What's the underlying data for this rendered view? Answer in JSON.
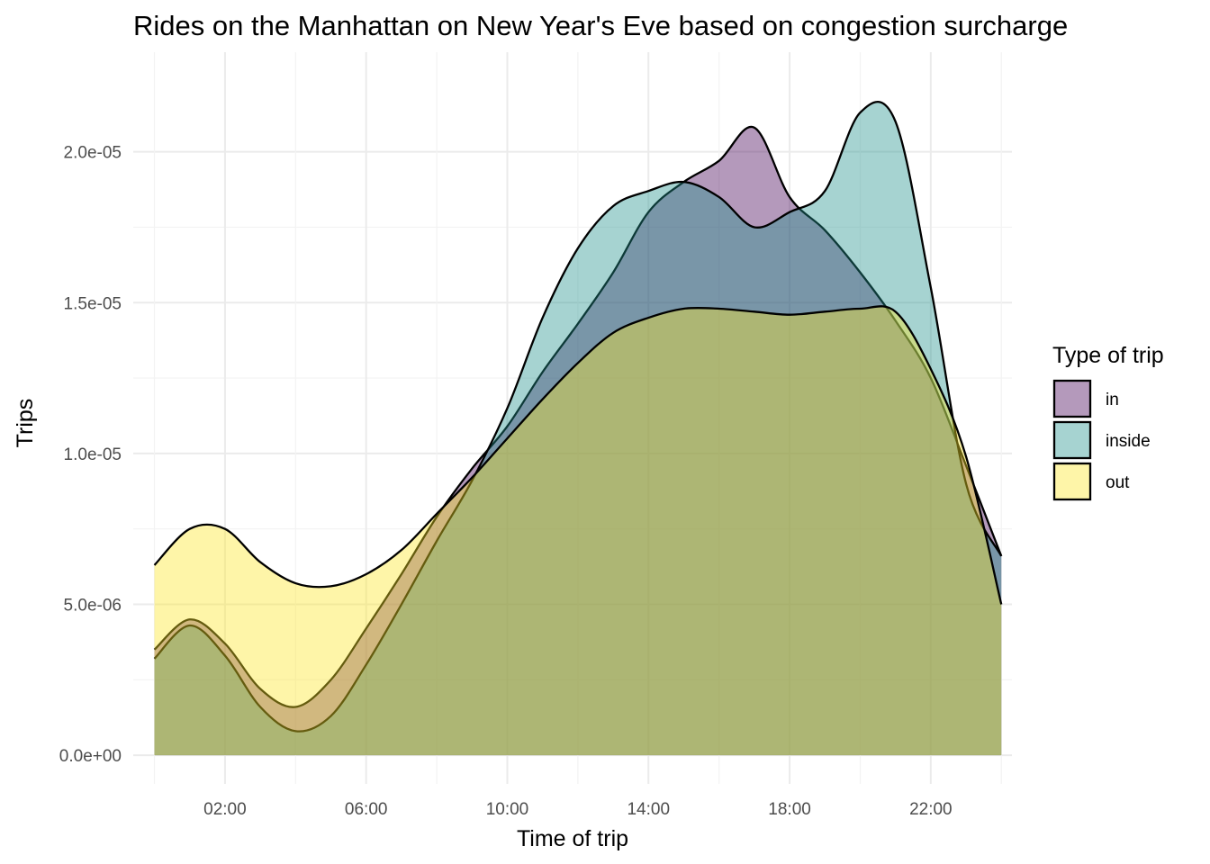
{
  "chart_data": {
    "type": "area",
    "title": "Rides on the Manhattan on New Year's Eve based on congestion surcharge",
    "xlabel": "Time of trip",
    "ylabel": "Trips",
    "xlim": [
      -0.6,
      24.3
    ],
    "ylim": [
      -9.5e-07,
      2.33e-05
    ],
    "x_ticks": [
      2,
      6,
      10,
      14,
      18,
      22
    ],
    "x_tick_labels": [
      "02:00",
      "06:00",
      "10:00",
      "14:00",
      "18:00",
      "22:00"
    ],
    "y_ticks": [
      0,
      5e-06,
      1e-05,
      1.5e-05,
      2e-05
    ],
    "y_tick_labels": [
      "0.0e+00",
      "5.0e-06",
      "1.0e-05",
      "1.5e-05",
      "2.0e-05"
    ],
    "grid": true,
    "legend": {
      "title": "Type of trip",
      "position": "right"
    },
    "x": [
      0,
      1,
      2,
      3,
      4,
      5,
      6,
      7,
      8,
      9,
      10,
      11,
      12,
      13,
      14,
      15,
      16,
      17,
      18,
      19,
      20,
      21,
      22,
      23,
      24
    ],
    "series": [
      {
        "name": "in",
        "color": "#440154",
        "values": [
          3.5e-06,
          4.5e-06,
          3.7e-06,
          2.2e-06,
          1.6e-06,
          2.5e-06,
          4.2e-06,
          6e-06,
          7.9e-06,
          9.5e-06,
          1.09e-05,
          1.27e-05,
          1.43e-05,
          1.6e-05,
          1.8e-05,
          1.9e-05,
          1.97e-05,
          2.08e-05,
          1.85e-05,
          1.74e-05,
          1.6e-05,
          1.44e-05,
          1.25e-05,
          9.6e-06,
          6.6e-06
        ]
      },
      {
        "name": "inside",
        "color": "#21908C",
        "values": [
          3.2e-06,
          4.3e-06,
          3.3e-06,
          1.6e-06,
          8e-07,
          1.3e-06,
          3e-06,
          5e-06,
          7.1e-06,
          9.1e-06,
          1.15e-05,
          1.45e-05,
          1.68e-05,
          1.82e-05,
          1.87e-05,
          1.9e-05,
          1.85e-05,
          1.75e-05,
          1.8e-05,
          1.87e-05,
          2.13e-05,
          2.1e-05,
          1.55e-05,
          9e-06,
          6.6e-06
        ]
      },
      {
        "name": "out",
        "color": "#FDE725",
        "values": [
          6.3e-06,
          7.5e-06,
          7.5e-06,
          6.4e-06,
          5.7e-06,
          5.6e-06,
          6e-06,
          6.8e-06,
          8e-06,
          9.2e-06,
          1.05e-05,
          1.18e-05,
          1.3e-05,
          1.4e-05,
          1.45e-05,
          1.48e-05,
          1.48e-05,
          1.47e-05,
          1.46e-05,
          1.47e-05,
          1.48e-05,
          1.47e-05,
          1.28e-05,
          9.9e-06,
          5e-06
        ]
      }
    ]
  }
}
